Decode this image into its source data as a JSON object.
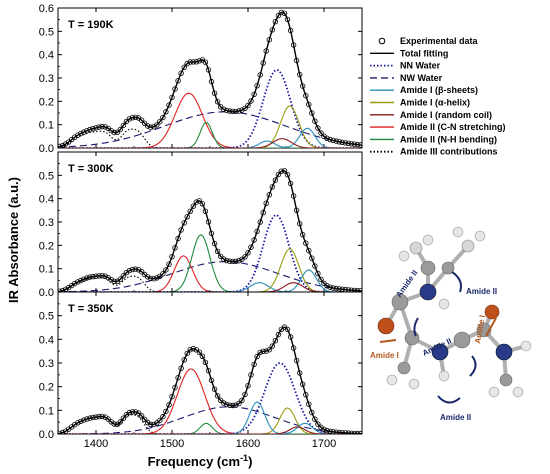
{
  "figure": {
    "xlabel": "Frequency (cm",
    "xlabel_sup": "-1",
    "xlabel_end": ")",
    "ylabel": "IR Absorbance (a.u.)",
    "xticks": [
      "1400",
      "1500",
      "1600",
      "1700"
    ],
    "yticks": [
      "0.0",
      "0.1",
      "0.2",
      "0.3",
      "0.4",
      "0.5",
      "0.6"
    ],
    "legend": [
      {
        "label": "Experimental data",
        "color": "#000000",
        "style": "circle"
      },
      {
        "label": "Total fitting",
        "color": "#000000",
        "style": "solid"
      },
      {
        "label": "NN Water",
        "color": "#1a1aa8",
        "style": "dotted"
      },
      {
        "label": "NW Water",
        "color": "#1a1a70",
        "style": "dashed"
      },
      {
        "label": "Amide I (β-sheets)",
        "color": "#2a8fb8",
        "style": "solid"
      },
      {
        "label": "Amide I (α-helix)",
        "color": "#9a9a10",
        "style": "solid"
      },
      {
        "label": "Amide I (random coil)",
        "color": "#8b1a1a",
        "style": "solid"
      },
      {
        "label": "Amide II (C-N stretching)",
        "color": "#e02020",
        "style": "solid"
      },
      {
        "label": "Amide II (N-H bending)",
        "color": "#1e8c3c",
        "style": "solid"
      },
      {
        "label": "Amide III contributions",
        "color": "#000000",
        "style": "dotted"
      }
    ],
    "molecule_labels": [
      "Amide II",
      "Amide II",
      "Amide I",
      "Amide II",
      "Amide I",
      "Amide II",
      "Amide II"
    ]
  },
  "chart_data": [
    {
      "type": "line",
      "title": "T = 190K",
      "xlim": [
        1350,
        1750
      ],
      "ylim": [
        0,
        0.6
      ],
      "series": [
        {
          "name": "Amide III contributions",
          "peaks": [
            [
              1375,
              0.035,
              10
            ],
            [
              1393,
              0.05,
              10
            ],
            [
              1412,
              0.06,
              10
            ],
            [
              1440,
              0.055,
              8
            ],
            [
              1455,
              0.065,
              9
            ]
          ]
        },
        {
          "name": "NW Water",
          "peaks": [
            [
              1570,
              0.155,
              80
            ]
          ]
        },
        {
          "name": "Amide II (C-N stretching)",
          "peaks": [
            [
              1522,
              0.235,
              18
            ]
          ]
        },
        {
          "name": "Amide II (N-H bending)",
          "peaks": [
            [
              1545,
              0.11,
              8
            ]
          ]
        },
        {
          "name": "NN Water",
          "peaks": [
            [
              1638,
              0.335,
              18
            ]
          ]
        },
        {
          "name": "Amide I (α-helix)",
          "peaks": [
            [
              1655,
              0.18,
              12
            ]
          ]
        },
        {
          "name": "Amide I (β-sheets)",
          "peaks": [
            [
              1625,
              0.03,
              10
            ],
            [
              1678,
              0.085,
              10
            ]
          ]
        },
        {
          "name": "Amide I (random coil)",
          "peaks": [
            [
              1645,
              0.04,
              12
            ]
          ]
        }
      ]
    },
    {
      "type": "line",
      "title": "T = 300K",
      "xlim": [
        1350,
        1750
      ],
      "ylim": [
        0,
        0.6
      ],
      "series": [
        {
          "name": "Amide III contributions",
          "peaks": [
            [
              1375,
              0.03,
              10
            ],
            [
              1393,
              0.045,
              10
            ],
            [
              1412,
              0.05,
              10
            ],
            [
              1440,
              0.045,
              8
            ],
            [
              1455,
              0.055,
              9
            ]
          ]
        },
        {
          "name": "NW Water",
          "peaks": [
            [
              1570,
              0.13,
              70
            ]
          ]
        },
        {
          "name": "Amide II (C-N stretching)",
          "peaks": [
            [
              1515,
              0.155,
              12
            ]
          ]
        },
        {
          "name": "Amide II (N-H bending)",
          "peaks": [
            [
              1538,
              0.245,
              12
            ]
          ]
        },
        {
          "name": "NN Water",
          "peaks": [
            [
              1637,
              0.33,
              17
            ]
          ]
        },
        {
          "name": "Amide I (α-helix)",
          "peaks": [
            [
              1655,
              0.185,
              12
            ]
          ]
        },
        {
          "name": "Amide I (β-sheets)",
          "peaks": [
            [
              1615,
              0.04,
              12
            ],
            [
              1680,
              0.095,
              10
            ]
          ]
        },
        {
          "name": "Amide I (random coil)",
          "peaks": [
            [
              1660,
              0.04,
              12
            ]
          ]
        }
      ]
    },
    {
      "type": "line",
      "title": "T = 350K",
      "xlim": [
        1350,
        1750
      ],
      "ylim": [
        0,
        0.6
      ],
      "series": [
        {
          "name": "Amide III contributions",
          "peaks": [
            [
              1375,
              0.035,
              10
            ],
            [
              1393,
              0.05,
              10
            ],
            [
              1412,
              0.06,
              10
            ],
            [
              1440,
              0.055,
              8
            ],
            [
              1455,
              0.065,
              9
            ]
          ]
        },
        {
          "name": "NW Water",
          "peaks": [
            [
              1575,
              0.115,
              60
            ]
          ]
        },
        {
          "name": "Amide II (C-N stretching)",
          "peaks": [
            [
              1525,
              0.275,
              18
            ]
          ]
        },
        {
          "name": "Amide II (N-H bending)",
          "peaks": [
            [
              1545,
              0.045,
              8
            ]
          ]
        },
        {
          "name": "NN Water",
          "peaks": [
            [
              1642,
              0.3,
              20
            ]
          ]
        },
        {
          "name": "Amide I (α-helix)",
          "peaks": [
            [
              1652,
              0.11,
              10
            ]
          ]
        },
        {
          "name": "Amide I (β-sheets)",
          "peaks": [
            [
              1612,
              0.135,
              10
            ],
            [
              1675,
              0.045,
              10
            ]
          ]
        },
        {
          "name": "Amide I (random coil)",
          "peaks": [
            [
              1665,
              0.03,
              10
            ]
          ]
        }
      ]
    }
  ]
}
